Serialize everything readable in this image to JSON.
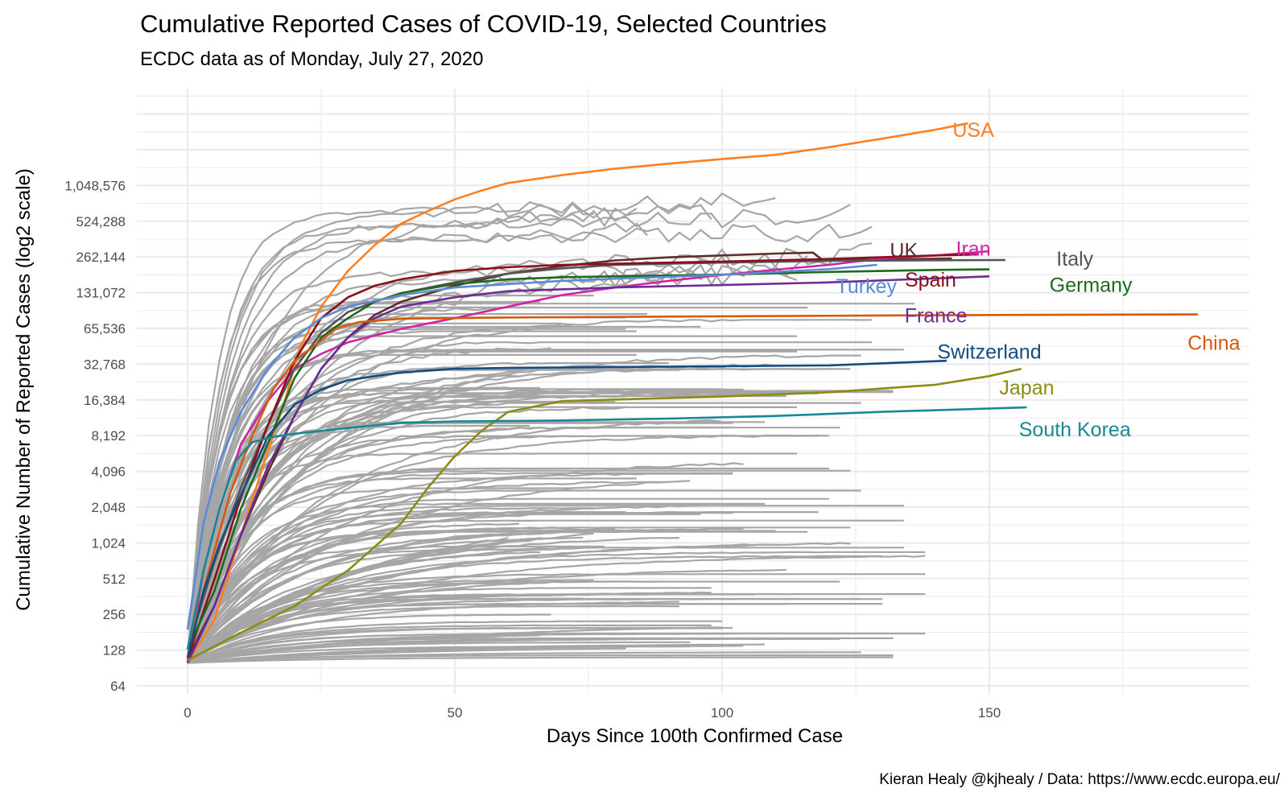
{
  "chart_data": {
    "type": "line",
    "title": "Cumulative Reported Cases of COVID-19, Selected Countries",
    "subtitle": "ECDC data as of Monday, July 27, 2020",
    "caption": "Kieran Healy @kjhealy / Data: https://www.ecdc.europa.eu/",
    "xlabel": "Days Since 100th Confirmed Case",
    "ylabel": "Cumulative Number of Reported Cases (log2 scale)",
    "y_scale": "log2",
    "xlim": [
      -9,
      198
    ],
    "ylim": [
      64,
      4194304
    ],
    "x_ticks": [
      0,
      50,
      100,
      150
    ],
    "x_tick_labels": [
      "0",
      "50",
      "100",
      "150"
    ],
    "y_ticks": [
      64,
      128,
      256,
      512,
      1024,
      2048,
      4096,
      8192,
      16384,
      32768,
      65536,
      131072,
      262144,
      524288,
      1048576
    ],
    "y_tick_labels": [
      "64",
      "128",
      "256",
      "512",
      "1,024",
      "2,048",
      "4,096",
      "8,192",
      "16,384",
      "32,768",
      "65,536",
      "131,072",
      "262,144",
      "524,288",
      "1,048,576"
    ],
    "grid": true,
    "legend": "none (direct labels)",
    "background_series_color": "#a6a6a6",
    "highlighted_series": [
      {
        "name": "USA",
        "color": "#ff7f20",
        "label_pos": [
          147,
          3100000
        ],
        "points": [
          [
            0,
            100
          ],
          [
            5,
            230
          ],
          [
            10,
            1200
          ],
          [
            15,
            6000
          ],
          [
            18,
            15000
          ],
          [
            21,
            45000
          ],
          [
            25,
            100000
          ],
          [
            30,
            200000
          ],
          [
            35,
            330000
          ],
          [
            40,
            500000
          ],
          [
            45,
            640000
          ],
          [
            50,
            800000
          ],
          [
            55,
            950000
          ],
          [
            60,
            1100000
          ],
          [
            70,
            1280000
          ],
          [
            80,
            1450000
          ],
          [
            90,
            1600000
          ],
          [
            100,
            1750000
          ],
          [
            110,
            1900000
          ],
          [
            120,
            2200000
          ],
          [
            130,
            2600000
          ],
          [
            140,
            3100000
          ],
          [
            146,
            3500000
          ]
        ]
      },
      {
        "name": "UK",
        "color": "#5e2e2a",
        "label_pos": [
          134,
          300000
        ],
        "points": [
          [
            0,
            110
          ],
          [
            5,
            300
          ],
          [
            10,
            1200
          ],
          [
            15,
            4000
          ],
          [
            20,
            12000
          ],
          [
            25,
            30000
          ],
          [
            30,
            55000
          ],
          [
            35,
            85000
          ],
          [
            40,
            110000
          ],
          [
            50,
            150000
          ],
          [
            60,
            190000
          ],
          [
            70,
            220000
          ],
          [
            80,
            245000
          ],
          [
            90,
            260000
          ],
          [
            100,
            270000
          ],
          [
            110,
            280000
          ],
          [
            117,
            285000
          ],
          [
            119,
            243000
          ],
          [
            130,
            250000
          ],
          [
            143,
            254000
          ]
        ]
      },
      {
        "name": "Iran",
        "color": "#d024a3",
        "label_pos": [
          147,
          310000
        ],
        "points": [
          [
            0,
            100
          ],
          [
            3,
            600
          ],
          [
            6,
            2000
          ],
          [
            10,
            7000
          ],
          [
            15,
            16000
          ],
          [
            20,
            30000
          ],
          [
            25,
            40000
          ],
          [
            30,
            50000
          ],
          [
            40,
            65000
          ],
          [
            50,
            80000
          ],
          [
            60,
            100000
          ],
          [
            70,
            125000
          ],
          [
            80,
            145000
          ],
          [
            90,
            165000
          ],
          [
            100,
            185000
          ],
          [
            110,
            205000
          ],
          [
            120,
            225000
          ],
          [
            130,
            255000
          ],
          [
            140,
            270000
          ],
          [
            150,
            293000
          ]
        ]
      },
      {
        "name": "Italy",
        "color": "#555555",
        "label_pos": [
          166,
          255000
        ],
        "points": [
          [
            0,
            130
          ],
          [
            5,
            700
          ],
          [
            10,
            3000
          ],
          [
            15,
            10000
          ],
          [
            20,
            30000
          ],
          [
            25,
            60000
          ],
          [
            30,
            90000
          ],
          [
            35,
            110000
          ],
          [
            40,
            130000
          ],
          [
            50,
            160000
          ],
          [
            60,
            190000
          ],
          [
            70,
            210000
          ],
          [
            80,
            225000
          ],
          [
            100,
            235000
          ],
          [
            120,
            243000
          ],
          [
            140,
            246000
          ],
          [
            153,
            247000
          ]
        ]
      },
      {
        "name": "Spain",
        "color": "#8b0f1b",
        "label_pos": [
          139,
          170000
        ],
        "points": [
          [
            0,
            110
          ],
          [
            5,
            500
          ],
          [
            10,
            2500
          ],
          [
            15,
            10000
          ],
          [
            20,
            35000
          ],
          [
            25,
            80000
          ],
          [
            30,
            120000
          ],
          [
            35,
            150000
          ],
          [
            40,
            170000
          ],
          [
            50,
            200000
          ],
          [
            60,
            215000
          ],
          [
            70,
            225000
          ],
          [
            80,
            230000
          ],
          [
            100,
            240000
          ],
          [
            120,
            252000
          ],
          [
            140,
            270000
          ],
          [
            148,
            275000
          ]
        ]
      },
      {
        "name": "Germany",
        "color": "#1c6a1c",
        "label_pos": [
          169,
          154000
        ],
        "points": [
          [
            0,
            130
          ],
          [
            5,
            400
          ],
          [
            10,
            2000
          ],
          [
            15,
            7000
          ],
          [
            20,
            25000
          ],
          [
            25,
            55000
          ],
          [
            30,
            80000
          ],
          [
            35,
            110000
          ],
          [
            40,
            130000
          ],
          [
            50,
            155000
          ],
          [
            60,
            170000
          ],
          [
            70,
            177000
          ],
          [
            80,
            180000
          ],
          [
            100,
            186000
          ],
          [
            120,
            196000
          ],
          [
            140,
            204000
          ],
          [
            150,
            206000
          ]
        ]
      },
      {
        "name": "Turkey",
        "color": "#5b8ad9",
        "label_pos": [
          127,
          150000
        ],
        "points": [
          [
            0,
            190
          ],
          [
            3,
            1500
          ],
          [
            6,
            5000
          ],
          [
            10,
            13000
          ],
          [
            15,
            30000
          ],
          [
            20,
            55000
          ],
          [
            25,
            80000
          ],
          [
            30,
            100000
          ],
          [
            40,
            125000
          ],
          [
            50,
            145000
          ],
          [
            60,
            155000
          ],
          [
            70,
            165000
          ],
          [
            80,
            172000
          ],
          [
            100,
            185000
          ],
          [
            120,
            207000
          ],
          [
            129,
            225000
          ]
        ]
      },
      {
        "name": "France",
        "color": "#6c2c94",
        "label_pos": [
          140,
          85000
        ],
        "points": [
          [
            0,
            100
          ],
          [
            5,
            300
          ],
          [
            10,
            1200
          ],
          [
            15,
            4500
          ],
          [
            20,
            12000
          ],
          [
            25,
            30000
          ],
          [
            30,
            55000
          ],
          [
            35,
            80000
          ],
          [
            40,
            100000
          ],
          [
            50,
            120000
          ],
          [
            60,
            135000
          ],
          [
            70,
            140000
          ],
          [
            80,
            145000
          ],
          [
            100,
            152000
          ],
          [
            120,
            160000
          ],
          [
            150,
            180000
          ]
        ]
      },
      {
        "name": "China",
        "color": "#d55a0f",
        "label_pos": [
          192,
          50000
        ],
        "points": [
          [
            0,
            130
          ],
          [
            4,
            600
          ],
          [
            8,
            2700
          ],
          [
            12,
            8000
          ],
          [
            16,
            20000
          ],
          [
            20,
            35000
          ],
          [
            24,
            48000
          ],
          [
            28,
            66000
          ],
          [
            32,
            74000
          ],
          [
            40,
            79000
          ],
          [
            60,
            81000
          ],
          [
            100,
            83000
          ],
          [
            150,
            85000
          ],
          [
            189,
            86000
          ]
        ]
      },
      {
        "name": "Switzerland",
        "color": "#144c82",
        "label_pos": [
          150,
          42000
        ],
        "points": [
          [
            0,
            110
          ],
          [
            3,
            400
          ],
          [
            6,
            1000
          ],
          [
            10,
            2600
          ],
          [
            15,
            8000
          ],
          [
            20,
            15000
          ],
          [
            25,
            20000
          ],
          [
            30,
            24000
          ],
          [
            40,
            28000
          ],
          [
            50,
            30000
          ],
          [
            60,
            30500
          ],
          [
            80,
            31000
          ],
          [
            100,
            31500
          ],
          [
            120,
            32000
          ],
          [
            142,
            35000
          ]
        ]
      },
      {
        "name": "Japan",
        "color": "#8c8c12",
        "label_pos": [
          157,
          21000
        ],
        "points": [
          [
            0,
            105
          ],
          [
            10,
            180
          ],
          [
            20,
            300
          ],
          [
            30,
            600
          ],
          [
            40,
            1500
          ],
          [
            45,
            3000
          ],
          [
            50,
            5500
          ],
          [
            55,
            9000
          ],
          [
            60,
            13000
          ],
          [
            70,
            16000
          ],
          [
            80,
            16500
          ],
          [
            100,
            17500
          ],
          [
            120,
            19000
          ],
          [
            140,
            22000
          ],
          [
            150,
            26000
          ],
          [
            156,
            30000
          ]
        ]
      },
      {
        "name": "South Korea",
        "color": "#188897",
        "label_pos": [
          166,
          9300
        ],
        "points": [
          [
            0,
            130
          ],
          [
            3,
            600
          ],
          [
            6,
            2000
          ],
          [
            9,
            5000
          ],
          [
            12,
            7200
          ],
          [
            16,
            8000
          ],
          [
            20,
            8500
          ],
          [
            30,
            9500
          ],
          [
            40,
            10500
          ],
          [
            50,
            10800
          ],
          [
            70,
            11000
          ],
          [
            90,
            11400
          ],
          [
            110,
            12000
          ],
          [
            130,
            13000
          ],
          [
            157,
            14200
          ]
        ]
      }
    ]
  }
}
